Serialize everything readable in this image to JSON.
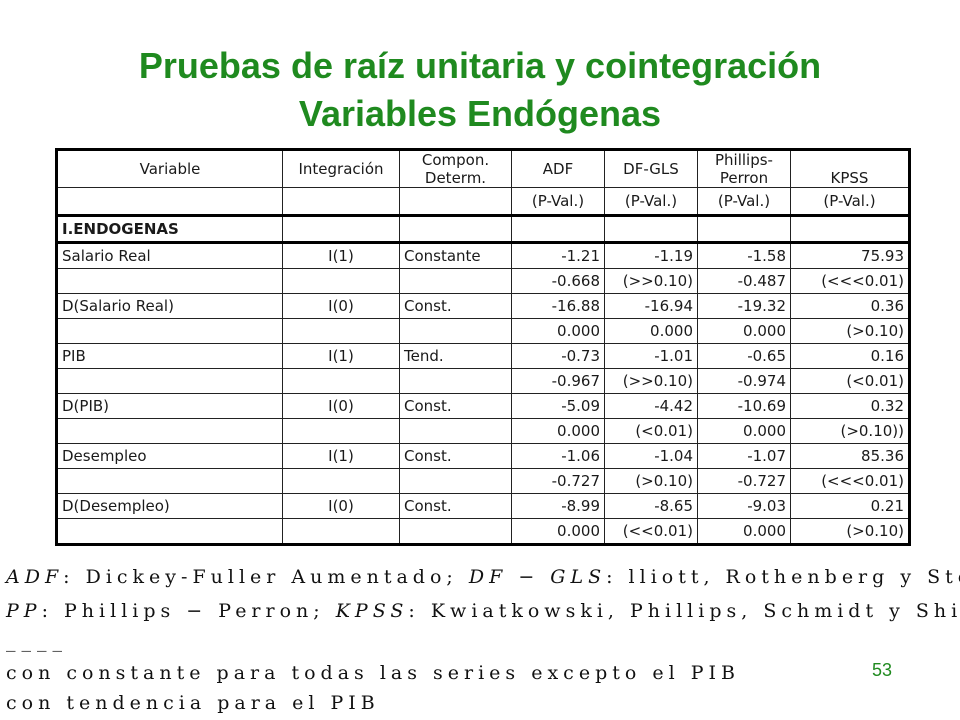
{
  "title": {
    "line1": "Pruebas de raíz unitaria y cointegración",
    "line2": "Variables Endógenas"
  },
  "table": {
    "headers": {
      "variable": "Variable",
      "integracion": "Integración",
      "compon_line1": "Compon.",
      "compon_line2": "Determ.",
      "adf": "ADF",
      "dfgls": "DF-GLS",
      "pp_line1": "Phillips-",
      "pp_line2": "Perron",
      "kpss": "KPSS",
      "pval": "(P-Val.)"
    },
    "section": "I.ENDOGENAS",
    "rows": [
      {
        "variable": "Salario Real",
        "integracion": "I(1)",
        "compon": "Constante",
        "adf": "-1.21",
        "dfgls": "-1.19",
        "pp": "-1.58",
        "kpss": "75.93",
        "p_adf": "-0.668",
        "p_dfgls": "(>>0.10)",
        "p_pp": "-0.487",
        "p_kpss": "(<<<0.01)"
      },
      {
        "variable": "D(Salario Real)",
        "integracion": "I(0)",
        "compon": "Const.",
        "adf": "-16.88",
        "dfgls": "-16.94",
        "pp": "-19.32",
        "kpss": "0.36",
        "p_adf": "0.000",
        "p_dfgls": "0.000",
        "p_pp": "0.000",
        "p_kpss": "(>0.10)"
      },
      {
        "variable": "PIB",
        "integracion": "I(1)",
        "compon": "Tend.",
        "adf": "-0.73",
        "dfgls": "-1.01",
        "pp": "-0.65",
        "kpss": "0.16",
        "p_adf": "-0.967",
        "p_dfgls": "(>>0.10)",
        "p_pp": "-0.974",
        "p_kpss": "(<0.01)"
      },
      {
        "variable": "D(PIB)",
        "integracion": "I(0)",
        "compon": "Const.",
        "adf": "-5.09",
        "dfgls": "-4.42",
        "pp": "-10.69",
        "kpss": "0.32",
        "p_adf": "0.000",
        "p_dfgls": "(<0.01)",
        "p_pp": "0.000",
        "p_kpss": "(>0.10))"
      },
      {
        "variable": "Desempleo",
        "integracion": "I(1)",
        "compon": "Const.",
        "adf": "-1.06",
        "dfgls": "-1.04",
        "pp": "-1.07",
        "kpss": "85.36",
        "p_adf": "-0.727",
        "p_dfgls": "(>0.10)",
        "p_pp": "-0.727",
        "p_kpss": "(<<<0.01)"
      },
      {
        "variable": "D(Desempleo)",
        "integracion": "I(0)",
        "compon": "Const.",
        "adf": "-8.99",
        "dfgls": "-8.65",
        "pp": "-9.03",
        "kpss": "0.21",
        "p_adf": "0.000",
        "p_dfgls": "(<<0.01)",
        "p_pp": "0.000",
        "p_kpss": "(>0.10)"
      }
    ]
  },
  "notes": {
    "line1_abbr1": "ADF",
    "line1_text1": ": Dickey-Fuller Aumentado;",
    "line1_abbr2": "DF − GLS",
    "line1_text2": ": lliott, Rothenberg y Stock",
    "line2_abbr1": "PP",
    "line2_text1": ": Phillips − Perron;",
    "line2_abbr2": "KPSS",
    "line2_text2": ": Kwiatkowski, Phillips, Schmidt y Shin",
    "line3": "____",
    "line4": "con constante para todas las series excepto el PIB",
    "line5": "con tendencia para el PIB"
  },
  "page_number": "53",
  "colors": {
    "title": "#1f8a1f",
    "page_number": "#1f8a1f",
    "text": "#1a1a1a"
  }
}
